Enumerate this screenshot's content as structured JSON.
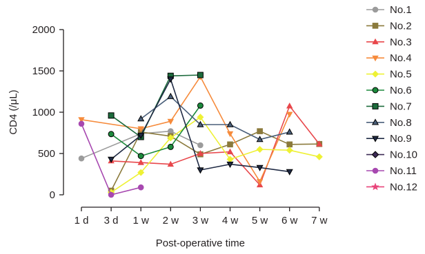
{
  "chart_data": {
    "type": "line",
    "xlabel": "Post-operative time",
    "ylabel": "CD4 (/μL)",
    "categories": [
      "1 d",
      "3 d",
      "1 w",
      "2 w",
      "3 w",
      "4 w",
      "5 w",
      "6 w",
      "7 w"
    ],
    "ylim": [
      0,
      2000
    ],
    "yticks": [
      0,
      500,
      1000,
      1500,
      2000
    ],
    "grid": false,
    "legend_position": "right",
    "series": [
      {
        "name": "No.1",
        "color": "#9b9b9b",
        "marker": "circle",
        "filled": true,
        "values": [
          440,
          null,
          740,
          770,
          600,
          null,
          null,
          null,
          null
        ]
      },
      {
        "name": "No.2",
        "color": "#8b7a3c",
        "marker": "square",
        "filled": true,
        "values": [
          null,
          50,
          760,
          710,
          490,
          610,
          770,
          610,
          615
        ]
      },
      {
        "name": "No.3",
        "color": "#e8474b",
        "marker": "triangle-up",
        "filled": true,
        "values": [
          null,
          410,
          390,
          370,
          500,
          520,
          120,
          1075,
          615
        ]
      },
      {
        "name": "No.4",
        "color": "#f68b3c",
        "marker": "triangle-down",
        "filled": true,
        "values": [
          910,
          null,
          800,
          890,
          1430,
          740,
          160,
          975,
          null
        ]
      },
      {
        "name": "No.5",
        "color": "#eef135",
        "marker": "diamond",
        "filled": true,
        "values": [
          null,
          30,
          270,
          690,
          940,
          430,
          550,
          540,
          460
        ]
      },
      {
        "name": "No.6",
        "color": "#1c8a3c",
        "marker": "circle",
        "filled": true,
        "edge": "#000000",
        "values": [
          null,
          735,
          470,
          580,
          1080,
          null,
          null,
          null,
          null
        ]
      },
      {
        "name": "No.7",
        "color": "#1c6b3c",
        "marker": "square",
        "filled": true,
        "edge": "#000000",
        "values": [
          null,
          960,
          700,
          1440,
          1450,
          null,
          null,
          null,
          null
        ]
      },
      {
        "name": "No.8",
        "color": "#4a5f7a",
        "marker": "triangle-up",
        "filled": true,
        "edge": "#000000",
        "values": [
          null,
          null,
          920,
          1190,
          850,
          850,
          670,
          760,
          null
        ]
      },
      {
        "name": "No.9",
        "color": "#1f2a44",
        "marker": "triangle-down",
        "filled": true,
        "edge": "#000000",
        "values": [
          null,
          430,
          720,
          1400,
          300,
          370,
          330,
          280,
          null
        ]
      },
      {
        "name": "No.10",
        "color": "#3c2a55",
        "marker": "diamond",
        "filled": true,
        "edge": "#000000",
        "values": [
          null,
          null,
          null,
          null,
          null,
          null,
          null,
          null,
          null
        ]
      },
      {
        "name": "No.11",
        "color": "#a748b0",
        "marker": "circle",
        "filled": true,
        "values": [
          860,
          0,
          90,
          null,
          null,
          null,
          null,
          null,
          null
        ]
      },
      {
        "name": "No.12",
        "color": "#e8457a",
        "marker": "star",
        "filled": true,
        "values": [
          null,
          null,
          null,
          null,
          null,
          null,
          null,
          null,
          null
        ]
      }
    ]
  }
}
